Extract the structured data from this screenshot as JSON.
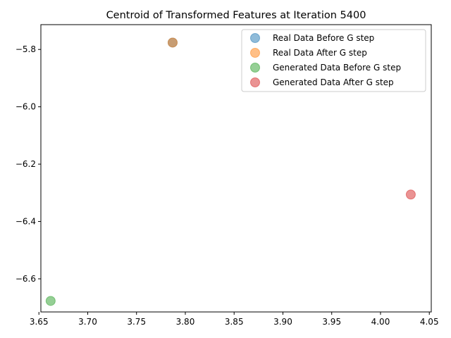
{
  "chart_data": {
    "type": "scatter",
    "title": "Centroid of Transformed Features at Iteration 5400",
    "xlabel": "",
    "ylabel": "",
    "xlim": [
      3.652,
      4.052
    ],
    "ylim": [
      -6.7155,
      -5.7135
    ],
    "x_ticks": [
      3.65,
      3.7,
      3.75,
      3.8,
      3.85,
      3.9,
      3.95,
      4.0,
      4.05
    ],
    "x_tick_labels": [
      "3.65",
      "3.70",
      "3.75",
      "3.80",
      "3.85",
      "3.90",
      "3.95",
      "4.00",
      "4.05"
    ],
    "y_ticks": [
      -6.6,
      -6.4,
      -6.2,
      -6.0,
      -5.8
    ],
    "y_tick_labels": [
      "−6.6",
      "−6.4",
      "−6.2",
      "−6.0",
      "−5.8"
    ],
    "grid": false,
    "legend_position": "top-right",
    "series": [
      {
        "name": "Real Data Before G step",
        "color": "#1f77b4",
        "points": [
          {
            "x": 3.787,
            "y": -5.776
          }
        ]
      },
      {
        "name": "Real Data After G step",
        "color": "#ff7f0e",
        "points": [
          {
            "x": 3.787,
            "y": -5.776
          }
        ]
      },
      {
        "name": "Generated Data Before G step",
        "color": "#2ca02c",
        "points": [
          {
            "x": 3.662,
            "y": -6.677
          }
        ]
      },
      {
        "name": "Generated Data After G step",
        "color": "#d62728",
        "points": [
          {
            "x": 4.031,
            "y": -6.306
          }
        ]
      }
    ]
  }
}
